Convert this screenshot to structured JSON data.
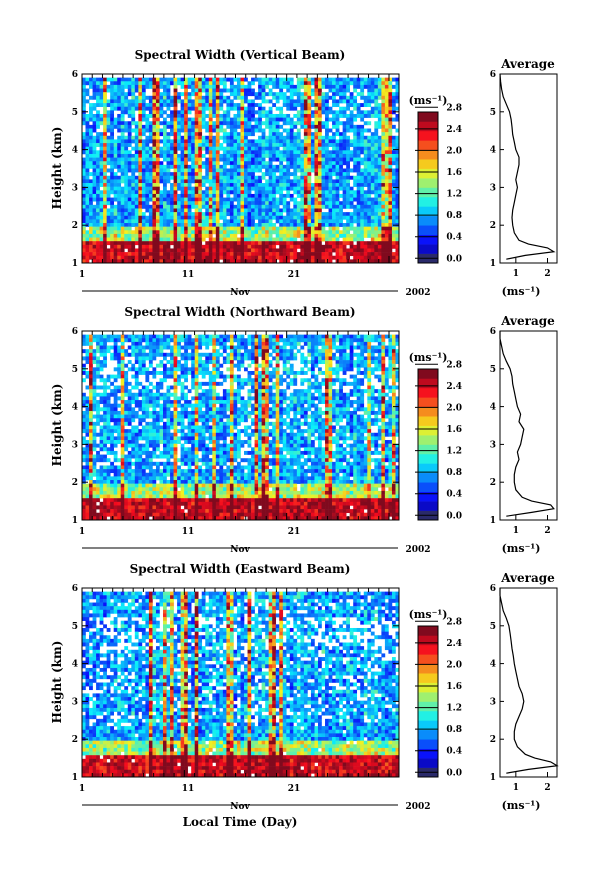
{
  "figure": {
    "xlabel": "Local Time (Day)",
    "unit": "(ms⁻¹)"
  },
  "chart_data": [
    {
      "type": "heatmap",
      "title": "Spectral Width (Vertical Beam)",
      "ylabel": "Height (km)",
      "ylim": [
        1,
        6
      ],
      "yticks": [
        "1",
        "2",
        "3",
        "4",
        "5",
        "6"
      ],
      "xlim": [
        1,
        31
      ],
      "xticks": [
        "1",
        "11",
        "21"
      ],
      "month": "Nov",
      "year": "2002",
      "colorbar": {
        "unit": "(ms⁻¹)",
        "range": [
          0.0,
          2.8
        ],
        "labels": [
          "0.0",
          "0.4",
          "0.8",
          "1.2",
          "1.6",
          "2.0",
          "2.4",
          "2.8"
        ]
      },
      "profile": {
        "title": "Average",
        "xlabel": "(ms⁻¹)",
        "xticks": [
          "1",
          "2"
        ],
        "xlim": [
          0.5,
          2.3
        ],
        "height_km": [
          1.1,
          1.2,
          1.3,
          1.4,
          1.5,
          1.6,
          1.8,
          2.0,
          2.2,
          2.4,
          2.6,
          2.8,
          3.0,
          3.2,
          3.4,
          3.6,
          3.8,
          4.0,
          4.2,
          4.4,
          4.6,
          4.8,
          5.0,
          5.2,
          5.4,
          5.6,
          5.8,
          6.0
        ],
        "width": [
          0.7,
          1.3,
          2.2,
          2.0,
          1.4,
          1.1,
          0.95,
          0.9,
          0.88,
          0.9,
          0.95,
          1.0,
          1.05,
          1.0,
          1.05,
          1.1,
          1.1,
          1.0,
          0.95,
          0.9,
          0.88,
          0.85,
          0.8,
          0.7,
          0.6,
          0.55,
          0.52,
          0.5
        ]
      }
    },
    {
      "type": "heatmap",
      "title": "Spectral Width (Northward Beam)",
      "ylabel": "Height (km)",
      "ylim": [
        1,
        6
      ],
      "yticks": [
        "1",
        "2",
        "3",
        "4",
        "5",
        "6"
      ],
      "xlim": [
        1,
        31
      ],
      "xticks": [
        "1",
        "11",
        "21"
      ],
      "month": "Nov",
      "year": "2002",
      "colorbar": {
        "unit": "(ms⁻¹)",
        "range": [
          0.0,
          2.8
        ],
        "labels": [
          "0.0",
          "0.4",
          "0.8",
          "1.2",
          "1.6",
          "2.0",
          "2.4",
          "2.8"
        ]
      },
      "profile": {
        "title": "Average",
        "xlabel": "(ms⁻¹)",
        "xticks": [
          "1",
          "2"
        ],
        "xlim": [
          0.5,
          2.3
        ],
        "height_km": [
          1.1,
          1.2,
          1.3,
          1.4,
          1.5,
          1.6,
          1.8,
          2.0,
          2.2,
          2.4,
          2.6,
          2.8,
          3.0,
          3.2,
          3.4,
          3.6,
          3.8,
          4.0,
          4.2,
          4.4,
          4.6,
          4.8,
          5.0,
          5.2,
          5.4,
          5.6,
          5.8,
          6.0
        ],
        "width": [
          0.7,
          1.5,
          2.2,
          2.1,
          1.5,
          1.2,
          1.0,
          0.95,
          0.95,
          1.0,
          1.1,
          1.05,
          1.15,
          1.2,
          1.25,
          1.1,
          1.15,
          1.05,
          1.0,
          0.95,
          0.9,
          0.88,
          0.82,
          0.7,
          0.6,
          0.55,
          0.5,
          0.5
        ]
      }
    },
    {
      "type": "heatmap",
      "title": "Spectral Width (Eastward Beam)",
      "ylabel": "Height (km)",
      "ylim": [
        1,
        6
      ],
      "yticks": [
        "1",
        "2",
        "3",
        "4",
        "5",
        "6"
      ],
      "xlim": [
        1,
        31
      ],
      "xticks": [
        "1",
        "11",
        "21"
      ],
      "month": "Nov",
      "year": "2002",
      "colorbar": {
        "unit": "(ms⁻¹)",
        "range": [
          0.0,
          2.8
        ],
        "labels": [
          "0.0",
          "0.4",
          "0.8",
          "1.2",
          "1.6",
          "2.0",
          "2.4",
          "2.8"
        ]
      },
      "profile": {
        "title": "Average",
        "xlabel": "(ms⁻¹)",
        "xticks": [
          "1",
          "2"
        ],
        "xlim": [
          0.5,
          2.3
        ],
        "height_km": [
          1.1,
          1.2,
          1.3,
          1.4,
          1.5,
          1.6,
          1.8,
          2.0,
          2.2,
          2.4,
          2.6,
          2.8,
          3.0,
          3.2,
          3.4,
          3.6,
          3.8,
          4.0,
          4.2,
          4.4,
          4.6,
          4.8,
          5.0,
          5.2,
          5.4,
          5.6,
          5.8,
          6.0
        ],
        "width": [
          0.7,
          1.4,
          2.3,
          2.1,
          1.6,
          1.3,
          1.05,
          0.95,
          0.95,
          1.0,
          1.1,
          1.2,
          1.25,
          1.2,
          1.1,
          1.05,
          1.0,
          0.95,
          0.92,
          0.88,
          0.85,
          0.82,
          0.78,
          0.7,
          0.6,
          0.55,
          0.5,
          0.5
        ]
      }
    }
  ]
}
